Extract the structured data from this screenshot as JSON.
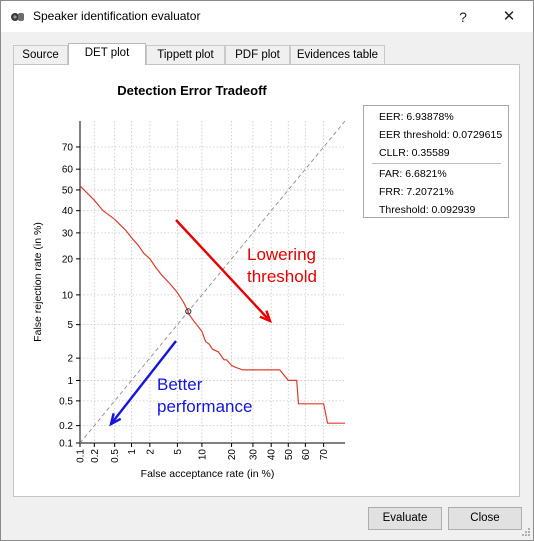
{
  "window": {
    "title": "Speaker identification evaluator",
    "help_glyph": "?",
    "close_glyph": "✕"
  },
  "tabs": [
    {
      "label": "Source",
      "active": false
    },
    {
      "label": "DET plot",
      "active": true
    },
    {
      "label": "Tippett plot",
      "active": false
    },
    {
      "label": "PDF plot",
      "active": false
    },
    {
      "label": "Evidences table",
      "active": false
    }
  ],
  "info": {
    "eer": "EER: 6.93878%",
    "eer_threshold": "EER threshold: 0.0729615",
    "cllr": "CLLR: 0.35589",
    "far": "FAR: 6.6821%",
    "frr": "FRR: 7.20721%",
    "threshold": "Threshold: 0.092939"
  },
  "buttons": {
    "evaluate": "Evaluate",
    "close": "Close"
  },
  "chart_data": {
    "type": "line",
    "title": "Detection Error Tradeoff",
    "xlabel": "False acceptance rate (in %)",
    "ylabel": "False rejection rate (in %)",
    "x_scale": "probit",
    "y_scale": "probit",
    "xlim": [
      0.1,
      80
    ],
    "ylim": [
      0.1,
      80
    ],
    "x_ticks": [
      "0.1",
      "0.2",
      "0.5",
      "1",
      "2",
      "5",
      "10",
      "20",
      "30",
      "40",
      "50",
      "60",
      "70"
    ],
    "y_ticks": [
      "0.1",
      "0.2",
      "0.5",
      "1",
      "2",
      "5",
      "10",
      "20",
      "30",
      "40",
      "50",
      "60",
      "70"
    ],
    "grid": true,
    "colors": {
      "curve": "#e03c2c",
      "diagonal": "#8c8c8c",
      "annotation_red": "#e80000",
      "annotation_blue": "#1515dd"
    },
    "series": [
      {
        "x": [
          0.1,
          0.2,
          0.3,
          0.5,
          0.6,
          0.8,
          1,
          1.3,
          1.6,
          2,
          2.5,
          3,
          4,
          5,
          6,
          6.7,
          7,
          8,
          9,
          10,
          11,
          12,
          13,
          15,
          17,
          18,
          20,
          22,
          25,
          30,
          40,
          45,
          50,
          52,
          55,
          56,
          70,
          72,
          80
        ],
        "y": [
          52,
          45,
          40,
          36,
          34,
          31,
          28,
          25,
          22,
          20,
          17,
          15,
          12.5,
          10.5,
          8.5,
          7.2,
          6.5,
          5.5,
          4.8,
          4.2,
          3.2,
          3.0,
          2.6,
          2.4,
          1.9,
          1.9,
          1.6,
          1.5,
          1.4,
          1.4,
          1.4,
          1.4,
          1.0,
          1.0,
          1.0,
          0.45,
          0.45,
          0.22,
          0.22
        ]
      }
    ],
    "eer_marker": {
      "x": 6.9,
      "y": 6.9
    },
    "annotations": [
      {
        "text_lines": [
          "Lowering",
          "threshold"
        ],
        "color": "#e80000"
      },
      {
        "text_lines": [
          "Better",
          "performance"
        ],
        "color": "#1515dd"
      }
    ]
  }
}
